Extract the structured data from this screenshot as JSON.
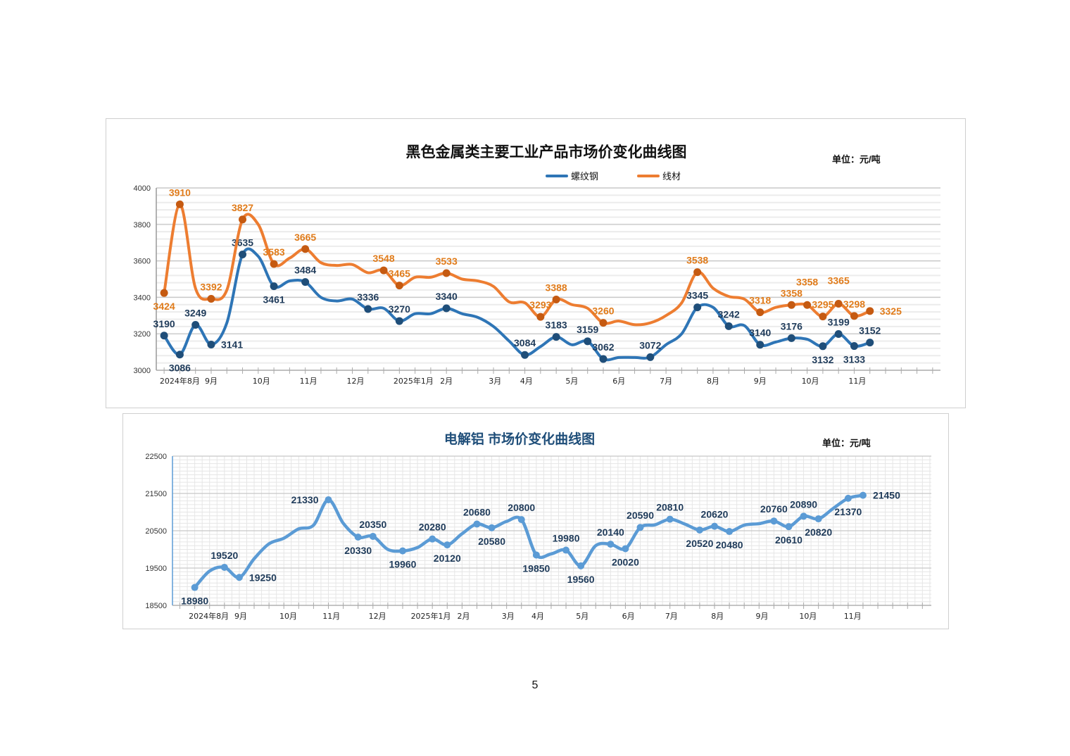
{
  "page_number": "5",
  "chart_data": [
    {
      "type": "line",
      "title": "黑色金属类主要工业产品市场价变化曲线图",
      "unit": "单位：元/吨",
      "xlabel": "",
      "ylabel": "",
      "ylim": [
        3000,
        4000
      ],
      "yticks": [
        3000,
        3200,
        3400,
        3600,
        3800,
        4000
      ],
      "grid": true,
      "legend_placement": "top-center",
      "x_unit": "week index",
      "xlim": [
        -0.5,
        49.5
      ],
      "xtick_labels": [
        {
          "week": 1,
          "label": "2024年8月"
        },
        {
          "week": 3,
          "label": "9月"
        },
        {
          "week": 6.2,
          "label": "10月"
        },
        {
          "week": 9.2,
          "label": "11月"
        },
        {
          "week": 12.2,
          "label": "12月"
        },
        {
          "week": 15.9,
          "label": "2025年1月"
        },
        {
          "week": 18,
          "label": "2月"
        },
        {
          "week": 21.1,
          "label": "3月"
        },
        {
          "week": 23.1,
          "label": "4月"
        },
        {
          "week": 26,
          "label": "5月"
        },
        {
          "week": 29,
          "label": "6月"
        },
        {
          "week": 32,
          "label": "7月"
        },
        {
          "week": 35,
          "label": "8月"
        },
        {
          "week": 38,
          "label": "9月"
        },
        {
          "week": 41.2,
          "label": "10月"
        },
        {
          "week": 44.2,
          "label": "11月"
        }
      ],
      "series": [
        {
          "name": "螺纹钢",
          "color": "#2e75b6",
          "marker_color": "#1f4e79",
          "label_color": "#1f3b5a",
          "points": [
            [
              0,
              3190,
              "above"
            ],
            [
              1,
              3086,
              "below"
            ],
            [
              2,
              3249,
              "above"
            ],
            [
              3,
              3141,
              "right"
            ],
            [
              4,
              3260,
              null
            ],
            [
              5,
              3635,
              "above"
            ],
            [
              6,
              3625,
              null
            ],
            [
              7,
              3461,
              "below"
            ],
            [
              8,
              3490,
              null
            ],
            [
              9,
              3484,
              "above"
            ],
            [
              10,
              3400,
              null
            ],
            [
              11,
              3380,
              null
            ],
            [
              12,
              3390,
              null
            ],
            [
              13,
              3336,
              "above"
            ],
            [
              14,
              3340,
              null
            ],
            [
              15,
              3270,
              "above"
            ],
            [
              16,
              3310,
              null
            ],
            [
              17,
              3310,
              null
            ],
            [
              18,
              3340,
              "above"
            ],
            [
              19,
              3310,
              null
            ],
            [
              20,
              3290,
              null
            ],
            [
              21,
              3240,
              null
            ],
            [
              22,
              3160,
              null
            ],
            [
              23,
              3084,
              "above"
            ],
            [
              24,
              3130,
              null
            ],
            [
              25,
              3183,
              "above"
            ],
            [
              26,
              3140,
              null
            ],
            [
              27,
              3159,
              "above"
            ],
            [
              28,
              3062,
              "above"
            ],
            [
              29,
              3070,
              null
            ],
            [
              30,
              3070,
              null
            ],
            [
              31,
              3072,
              "above"
            ],
            [
              32,
              3140,
              null
            ],
            [
              33,
              3200,
              null
            ],
            [
              34,
              3345,
              "above"
            ],
            [
              35,
              3345,
              null
            ],
            [
              36,
              3242,
              "above"
            ],
            [
              37,
              3245,
              null
            ],
            [
              38,
              3140,
              "above"
            ],
            [
              39,
              3155,
              null
            ],
            [
              40,
              3176,
              "above"
            ],
            [
              41,
              3170,
              null
            ],
            [
              42,
              3132,
              "below"
            ],
            [
              43,
              3199,
              "above"
            ],
            [
              44,
              3133,
              "below"
            ],
            [
              45,
              3152,
              "above"
            ]
          ]
        },
        {
          "name": "线材",
          "color": "#ed7d31",
          "marker_color": "#c55a11",
          "label_color": "#e07b1a",
          "points": [
            [
              0,
              3424,
              "below"
            ],
            [
              1,
              3910,
              "above"
            ],
            [
              2,
              3450,
              null
            ],
            [
              3,
              3392,
              "above"
            ],
            [
              4,
              3440,
              null
            ],
            [
              5,
              3827,
              "above"
            ],
            [
              6,
              3800,
              null
            ],
            [
              7,
              3583,
              "above"
            ],
            [
              8,
              3615,
              null
            ],
            [
              9,
              3665,
              "above"
            ],
            [
              10,
              3590,
              null
            ],
            [
              11,
              3575,
              null
            ],
            [
              12,
              3580,
              null
            ],
            [
              13,
              3535,
              null
            ],
            [
              14,
              3548,
              "above"
            ],
            [
              15,
              3465,
              "above"
            ],
            [
              16,
              3510,
              null
            ],
            [
              17,
              3510,
              null
            ],
            [
              18,
              3533,
              "above"
            ],
            [
              19,
              3500,
              null
            ],
            [
              20,
              3490,
              null
            ],
            [
              21,
              3460,
              null
            ],
            [
              22,
              3375,
              null
            ],
            [
              23,
              3370,
              null
            ],
            [
              24,
              3293,
              "above"
            ],
            [
              25,
              3388,
              "above"
            ],
            [
              26,
              3360,
              null
            ],
            [
              27,
              3340,
              null
            ],
            [
              28,
              3260,
              "above"
            ],
            [
              29,
              3270,
              null
            ],
            [
              30,
              3250,
              null
            ],
            [
              31,
              3260,
              null
            ],
            [
              32,
              3300,
              null
            ],
            [
              33,
              3370,
              null
            ],
            [
              34,
              3538,
              "above"
            ],
            [
              35,
              3450,
              null
            ],
            [
              36,
              3405,
              null
            ],
            [
              37,
              3390,
              null
            ],
            [
              38,
              3318,
              "above"
            ],
            [
              39,
              3345,
              null
            ],
            [
              40,
              3358,
              "above"
            ],
            [
              41,
              3358,
              "above2"
            ],
            [
              42,
              3295,
              "above"
            ],
            [
              43,
              3365,
              "above2"
            ],
            [
              44,
              3298,
              "above"
            ],
            [
              45,
              3325,
              "right"
            ]
          ]
        }
      ]
    },
    {
      "type": "line",
      "title": "电解铝  市场价变化曲线图",
      "unit": "单位：元/吨",
      "xlabel": "",
      "ylabel": "",
      "ylim": [
        18500,
        22500
      ],
      "yticks": [
        18500,
        19500,
        20500,
        21500,
        22500
      ],
      "grid": true,
      "x_unit": "week index",
      "xlim": [
        -1.5,
        49.6
      ],
      "xtick_labels": [
        {
          "week": 0.95,
          "label": "2024年8月"
        },
        {
          "week": 3.1,
          "label": "9月"
        },
        {
          "week": 6.3,
          "label": "10月"
        },
        {
          "week": 9.2,
          "label": "11月"
        },
        {
          "week": 12.3,
          "label": "12月"
        },
        {
          "week": 15.9,
          "label": "2025年1月"
        },
        {
          "week": 18.1,
          "label": "2月"
        },
        {
          "week": 21.1,
          "label": "3月"
        },
        {
          "week": 23.1,
          "label": "4月"
        },
        {
          "week": 26.1,
          "label": "5月"
        },
        {
          "week": 29.2,
          "label": "6月"
        },
        {
          "week": 32.1,
          "label": "7月"
        },
        {
          "week": 35.2,
          "label": "8月"
        },
        {
          "week": 38.2,
          "label": "9月"
        },
        {
          "week": 41.3,
          "label": "10月"
        },
        {
          "week": 44.3,
          "label": "11月"
        }
      ],
      "series": [
        {
          "name": "电解铝",
          "color": "#5b9bd5",
          "marker_color": "#5b9bd5",
          "label_color": "#1f3b5a",
          "points": [
            [
              0,
              18980,
              "below"
            ],
            [
              1,
              19420,
              null
            ],
            [
              2,
              19520,
              "above"
            ],
            [
              3,
              19250,
              "right"
            ],
            [
              4,
              19750,
              null
            ],
            [
              5,
              20150,
              null
            ],
            [
              6,
              20300,
              null
            ],
            [
              7,
              20550,
              null
            ],
            [
              8,
              20650,
              null
            ],
            [
              9,
              21330,
              "left"
            ],
            [
              10,
              20700,
              null
            ],
            [
              11,
              20330,
              "below"
            ],
            [
              12,
              20350,
              "above"
            ],
            [
              13,
              20000,
              null
            ],
            [
              14,
              19960,
              "below"
            ],
            [
              15,
              20050,
              null
            ],
            [
              16,
              20280,
              "above"
            ],
            [
              17,
              20120,
              "below"
            ],
            [
              18,
              20420,
              null
            ],
            [
              19,
              20680,
              "above"
            ],
            [
              20,
              20580,
              "below"
            ],
            [
              21,
              20750,
              null
            ],
            [
              22,
              20800,
              "above"
            ],
            [
              23,
              19850,
              "below"
            ],
            [
              24,
              19880,
              null
            ],
            [
              25,
              19980,
              "above"
            ],
            [
              26,
              19560,
              "below"
            ],
            [
              27,
              20100,
              null
            ],
            [
              28,
              20140,
              "above"
            ],
            [
              29,
              20020,
              "below"
            ],
            [
              30,
              20590,
              "above"
            ],
            [
              31,
              20660,
              null
            ],
            [
              32,
              20810,
              "above"
            ],
            [
              33,
              20680,
              null
            ],
            [
              34,
              20520,
              "below"
            ],
            [
              35,
              20620,
              "above"
            ],
            [
              36,
              20480,
              "below"
            ],
            [
              37,
              20650,
              null
            ],
            [
              38,
              20690,
              null
            ],
            [
              39,
              20760,
              "above"
            ],
            [
              40,
              20610,
              "below"
            ],
            [
              41,
              20890,
              "above"
            ],
            [
              42,
              20820,
              "below"
            ],
            [
              43,
              21100,
              null
            ],
            [
              44,
              21370,
              "below"
            ],
            [
              45,
              21450,
              "right"
            ]
          ]
        }
      ]
    }
  ]
}
